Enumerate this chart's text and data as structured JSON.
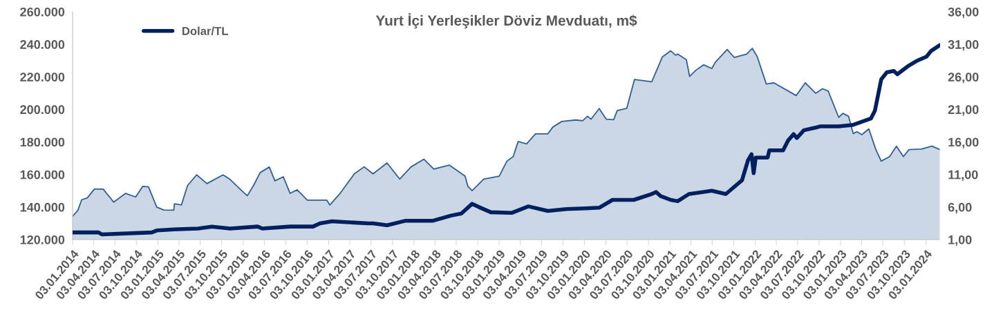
{
  "chart_data": {
    "type": "area",
    "title": "Yurt İçi Yerleşikler Döviz Mevduatı, m$",
    "xlim": [
      "2014-01-03",
      "2024-03-04"
    ],
    "xticks": [
      {
        "value": "2014-01-03",
        "label": "03.01.2014"
      },
      {
        "value": "2014-04-03",
        "label": "03.04.2014"
      },
      {
        "value": "2014-07-03",
        "label": "03.07.2014"
      },
      {
        "value": "2014-10-03",
        "label": "03.10.2014"
      },
      {
        "value": "2015-01-03",
        "label": "03.01.2015"
      },
      {
        "value": "2015-04-03",
        "label": "03.04.2015"
      },
      {
        "value": "2015-07-03",
        "label": "03.07.2015"
      },
      {
        "value": "2015-10-03",
        "label": "03.10.2015"
      },
      {
        "value": "2016-01-03",
        "label": "03.01.2016"
      },
      {
        "value": "2016-04-03",
        "label": "03.04.2016"
      },
      {
        "value": "2016-07-03",
        "label": "03.07.2016"
      },
      {
        "value": "2016-10-03",
        "label": "03.10.2016"
      },
      {
        "value": "2017-01-03",
        "label": "03.01.2017"
      },
      {
        "value": "2017-04-03",
        "label": "03.04.2017"
      },
      {
        "value": "2017-07-03",
        "label": "03.07.2017"
      },
      {
        "value": "2017-10-03",
        "label": "03.10.2017"
      },
      {
        "value": "2018-01-03",
        "label": "03.01.2018"
      },
      {
        "value": "2018-04-03",
        "label": "03.04.2018"
      },
      {
        "value": "2018-07-03",
        "label": "03.07.2018"
      },
      {
        "value": "2018-10-03",
        "label": "03.10.2018"
      },
      {
        "value": "2019-01-03",
        "label": "03.01.2019"
      },
      {
        "value": "2019-04-03",
        "label": "03.04.2019"
      },
      {
        "value": "2019-07-03",
        "label": "03.07.2019"
      },
      {
        "value": "2019-10-03",
        "label": "03.10.2019"
      },
      {
        "value": "2020-01-03",
        "label": "03.01.2020"
      },
      {
        "value": "2020-04-03",
        "label": "03.04.2020"
      },
      {
        "value": "2020-07-03",
        "label": "03.07.2020"
      },
      {
        "value": "2020-10-03",
        "label": "03.10.2020"
      },
      {
        "value": "2021-01-03",
        "label": "03.01.2021"
      },
      {
        "value": "2021-04-03",
        "label": "03.04.2021"
      },
      {
        "value": "2021-07-03",
        "label": "03.07.2021"
      },
      {
        "value": "2021-10-03",
        "label": "03.10.2021"
      },
      {
        "value": "2022-01-03",
        "label": "03.01.2022"
      },
      {
        "value": "2022-04-03",
        "label": "03.04.2022"
      },
      {
        "value": "2022-07-03",
        "label": "03.07.2022"
      },
      {
        "value": "2022-10-03",
        "label": "03.10.2022"
      },
      {
        "value": "2023-01-03",
        "label": "03.01.2023"
      },
      {
        "value": "2023-04-03",
        "label": "03.04.2023"
      },
      {
        "value": "2023-07-03",
        "label": "03.07.2023"
      },
      {
        "value": "2023-10-03",
        "label": "03.10.2023"
      },
      {
        "value": "2024-01-03",
        "label": "03.01.2024"
      }
    ],
    "ylim": [
      120000,
      260000
    ],
    "yticks": [
      {
        "value": 120000,
        "label": "120.000"
      },
      {
        "value": 140000,
        "label": "140.000"
      },
      {
        "value": 160000,
        "label": "160.000"
      },
      {
        "value": 180000,
        "label": "180.000"
      },
      {
        "value": 200000,
        "label": "200.000"
      },
      {
        "value": 220000,
        "label": "220.000"
      },
      {
        "value": 240000,
        "label": "240.000"
      },
      {
        "value": 260000,
        "label": "260.000"
      }
    ],
    "y2lim": [
      1,
      36
    ],
    "y2ticks": [
      {
        "value": 1,
        "label": "1,00"
      },
      {
        "value": 6,
        "label": "6,00"
      },
      {
        "value": 11,
        "label": "11,00"
      },
      {
        "value": 16,
        "label": "16,00"
      },
      {
        "value": 21,
        "label": "21,00"
      },
      {
        "value": 26,
        "label": "26,00"
      },
      {
        "value": 31,
        "label": "31,00"
      },
      {
        "value": 36,
        "label": "36,00"
      }
    ],
    "grid": false,
    "legend": "top left",
    "series": [
      {
        "color": "#2f5f98",
        "x": [
          "2014-01-03",
          "2014-01-26",
          "2014-02-11",
          "2014-03-07",
          "2014-04-06",
          "2014-05-14",
          "2014-06-28",
          "2014-08-18",
          "2014-09-30",
          "2014-10-30",
          "2014-11-24",
          "2014-12-29",
          "2015-01-28",
          "2015-03-12",
          "2015-03-15",
          "2015-04-14",
          "2015-05-10",
          "2015-06-18",
          "2015-08-01",
          "2015-10-09",
          "2015-11-08",
          "2016-01-04",
          "2016-01-21",
          "2016-02-17",
          "2016-03-16",
          "2016-04-24",
          "2016-05-18",
          "2016-06-23",
          "2016-07-22",
          "2016-08-21",
          "2016-10-04",
          "2016-12-26",
          "2017-01-08",
          "2017-02-21",
          "2017-04-23",
          "2017-06-04",
          "2017-07-12",
          "2017-09-10",
          "2017-11-03",
          "2017-12-22",
          "2018-02-15",
          "2018-03-29",
          "2018-06-03",
          "2018-08-10",
          "2018-08-22",
          "2018-09-09",
          "2018-10-29",
          "2019-01-03",
          "2019-02-05",
          "2019-03-04",
          "2019-03-25",
          "2019-04-30",
          "2019-06-07",
          "2019-07-30",
          "2019-08-21",
          "2019-09-28",
          "2019-11-27",
          "2019-12-26",
          "2020-01-16",
          "2020-01-31",
          "2020-03-06",
          "2020-04-05",
          "2020-05-07",
          "2020-05-22",
          "2020-07-02",
          "2020-08-04",
          "2020-10-17",
          "2020-12-01",
          "2021-01-06",
          "2021-01-27",
          "2021-02-05",
          "2021-03-14",
          "2021-03-28",
          "2021-04-24",
          "2021-05-27",
          "2021-07-01",
          "2021-07-16",
          "2021-09-05",
          "2021-10-05",
          "2021-11-27",
          "2021-12-21",
          "2022-01-11",
          "2022-02-19",
          "2022-03-24",
          "2022-06-27",
          "2022-08-05",
          "2022-09-19",
          "2022-10-18",
          "2022-11-11",
          "2022-12-26",
          "2023-01-13",
          "2023-02-06",
          "2023-02-26",
          "2023-03-14",
          "2023-04-04",
          "2023-05-04",
          "2023-06-03",
          "2023-06-26",
          "2023-08-01",
          "2023-08-30",
          "2023-09-29",
          "2023-10-23",
          "2023-12-15",
          "2024-01-29",
          "2024-03-04"
        ],
        "values": [
          134300,
          138100,
          144500,
          145600,
          151000,
          151000,
          143000,
          148400,
          146200,
          152700,
          152400,
          140000,
          138200,
          138100,
          142000,
          141300,
          153200,
          159800,
          154400,
          159800,
          157000,
          149100,
          147000,
          153400,
          161200,
          164600,
          156100,
          158600,
          148400,
          150600,
          144200,
          144200,
          141300,
          148400,
          160400,
          164700,
          160400,
          167100,
          157200,
          164700,
          169400,
          163300,
          165800,
          159000,
          152700,
          150100,
          157200,
          159000,
          168200,
          171000,
          180300,
          178800,
          185000,
          185000,
          189200,
          192600,
          193500,
          193000,
          195800,
          194000,
          200500,
          194000,
          193700,
          199300,
          200700,
          218400,
          217000,
          232200,
          236000,
          233300,
          234000,
          230500,
          220300,
          224100,
          227400,
          225100,
          229000,
          236800,
          231900,
          234000,
          237500,
          232500,
          215600,
          216300,
          208500,
          216300,
          209900,
          212700,
          211300,
          195100,
          197600,
          195800,
          185200,
          186300,
          184500,
          188000,
          175300,
          168200,
          171000,
          177400,
          171000,
          175300,
          175600,
          177400,
          175300
        ]
      },
      {
        "type": "line",
        "name": "Dolar/TL",
        "color": "#002060",
        "axis": "y2",
        "x": [
          "2014-01-03",
          "2014-04-24",
          "2014-05-08",
          "2014-12-08",
          "2014-12-29",
          "2015-03-29",
          "2015-06-24",
          "2015-08-22",
          "2015-11-08",
          "2016-03-05",
          "2016-03-25",
          "2016-07-22",
          "2016-10-28",
          "2016-11-27",
          "2017-01-17",
          "2017-06-21",
          "2017-07-12",
          "2017-09-10",
          "2017-11-29",
          "2018-03-26",
          "2018-06-12",
          "2018-07-25",
          "2018-09-09",
          "2018-10-08",
          "2018-11-28",
          "2019-02-25",
          "2019-05-08",
          "2019-07-30",
          "2019-10-19",
          "2020-01-08",
          "2020-03-06",
          "2020-05-02",
          "2020-08-01",
          "2020-10-09",
          "2020-11-05",
          "2020-11-23",
          "2021-01-06",
          "2021-02-05",
          "2021-03-25",
          "2021-07-01",
          "2021-08-30",
          "2021-11-07",
          "2021-12-03",
          "2021-12-18",
          "2021-12-27",
          "2022-01-05",
          "2022-02-25",
          "2022-03-04",
          "2022-05-02",
          "2022-05-23",
          "2022-06-16",
          "2022-06-30",
          "2022-07-30",
          "2022-09-19",
          "2022-10-09",
          "2022-12-26",
          "2023-02-23",
          "2023-05-13",
          "2023-05-30",
          "2023-06-12",
          "2023-06-26",
          "2023-07-20",
          "2023-08-19",
          "2023-09-03",
          "2023-10-17",
          "2023-11-28",
          "2024-01-06",
          "2024-01-26",
          "2024-03-04"
        ],
        "values": [
          2.1,
          2.1,
          1.8,
          2.1,
          2.4,
          2.6,
          2.7,
          3.0,
          2.7,
          3.0,
          2.7,
          3.0,
          3.0,
          3.5,
          3.8,
          3.5,
          3.5,
          3.2,
          3.9,
          3.9,
          4.7,
          5.0,
          6.5,
          6.0,
          5.2,
          5.1,
          6.1,
          5.4,
          5.7,
          5.8,
          5.9,
          7.1,
          7.1,
          7.9,
          8.3,
          7.7,
          7.1,
          6.9,
          8.0,
          8.5,
          8.0,
          10.1,
          13.2,
          14.1,
          11.2,
          13.6,
          13.6,
          14.7,
          14.7,
          16.2,
          17.2,
          16.6,
          17.8,
          18.2,
          18.4,
          18.4,
          18.6,
          19.6,
          20.8,
          23.1,
          25.6,
          26.7,
          26.9,
          26.4,
          27.6,
          28.5,
          29.1,
          30.0,
          30.9
        ]
      }
    ]
  }
}
